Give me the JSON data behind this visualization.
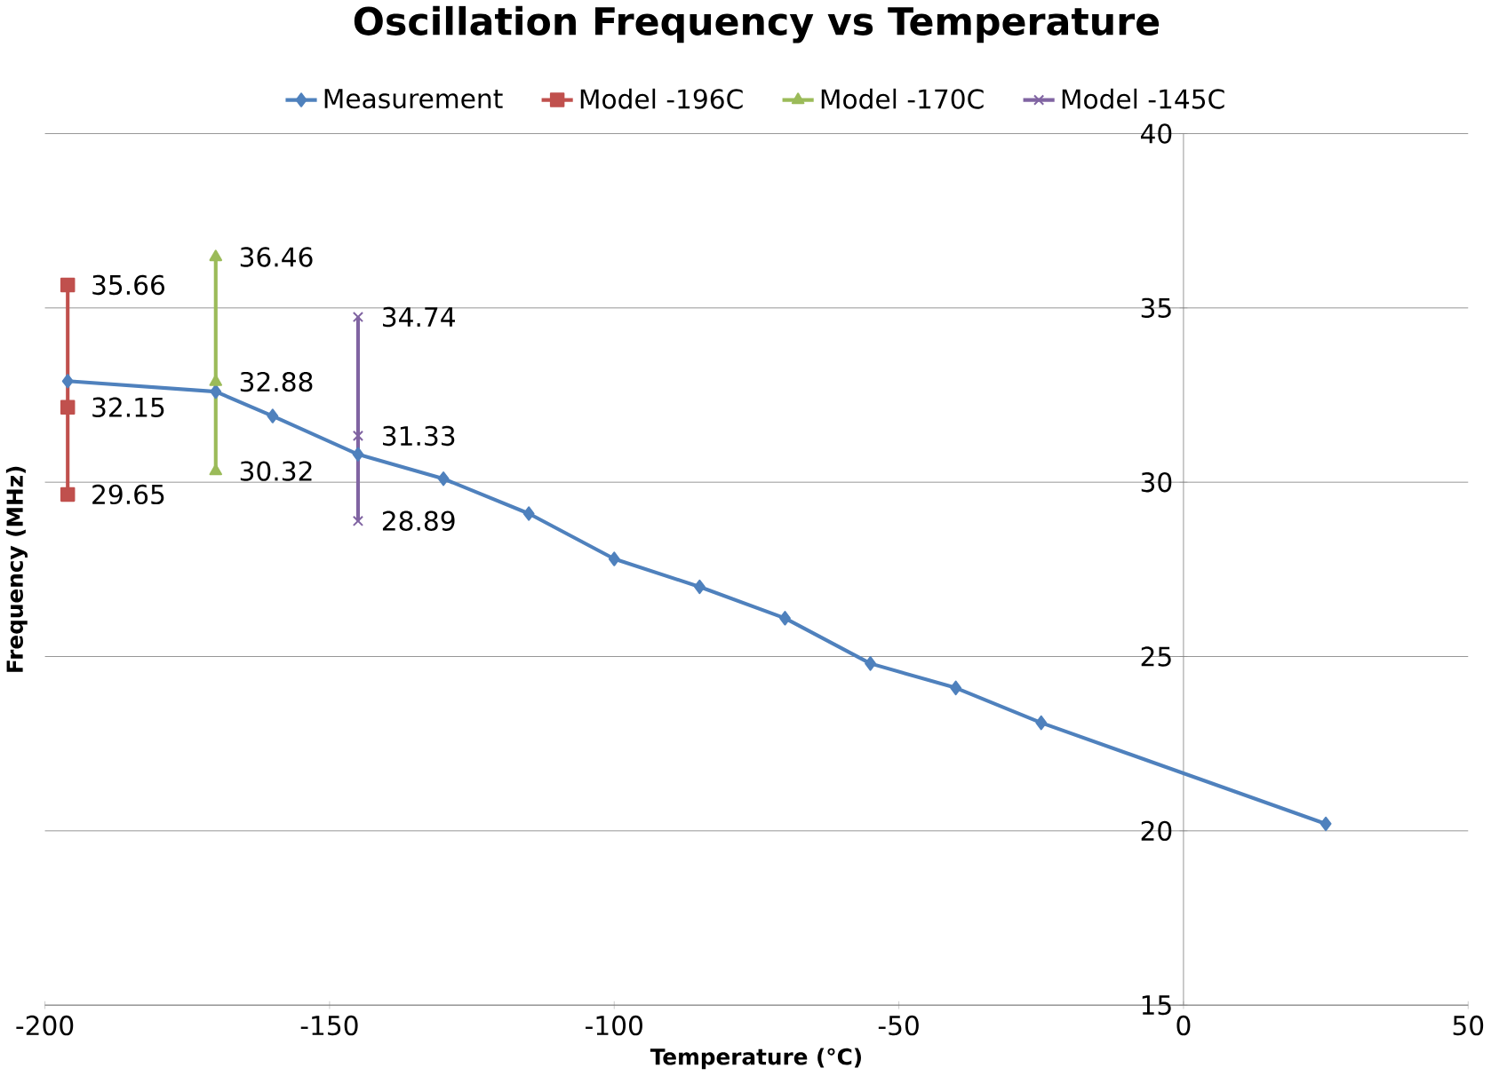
{
  "chart_data": {
    "type": "line",
    "title": "Oscillation Frequency vs Temperature",
    "xlabel": "Temperature (°C)",
    "ylabel": "Frequency (MHz)",
    "xlim": [
      -200,
      50
    ],
    "xticks": [
      -200,
      -150,
      -100,
      -50,
      0,
      50
    ],
    "ylim": [
      15,
      40
    ],
    "yticks": [
      15,
      20,
      25,
      30,
      35,
      40
    ],
    "grid": "y",
    "legend": "top",
    "series": [
      {
        "name": "Measurement",
        "color": "#4f81bd",
        "marker": "diamond",
        "x": [
          -196,
          -170,
          -160,
          -145,
          -130,
          -115,
          -100,
          -85,
          -70,
          -55,
          -40,
          -25,
          25
        ],
        "values": [
          32.9,
          32.6,
          31.9,
          30.8,
          30.1,
          29.1,
          27.8,
          27.0,
          26.1,
          24.8,
          24.1,
          23.1,
          20.2
        ]
      },
      {
        "name": "Model -196C",
        "color": "#c0504d",
        "marker": "square",
        "x": [
          -196,
          -196,
          -196
        ],
        "values": [
          29.65,
          32.15,
          35.66
        ],
        "value_labels": [
          "29.65",
          "32.15",
          "35.66"
        ]
      },
      {
        "name": "Model -170C",
        "color": "#9bbb59",
        "marker": "triangle",
        "x": [
          -170,
          -170,
          -170
        ],
        "values": [
          30.32,
          32.88,
          36.46
        ],
        "value_labels": [
          "30.32",
          "32.88",
          "36.46"
        ]
      },
      {
        "name": "Model -145C",
        "color": "#8064a2",
        "marker": "cross",
        "x": [
          -145,
          -145,
          -145
        ],
        "values": [
          28.89,
          31.33,
          34.74
        ],
        "value_labels": [
          "28.89",
          "31.33",
          "34.74"
        ]
      }
    ]
  }
}
